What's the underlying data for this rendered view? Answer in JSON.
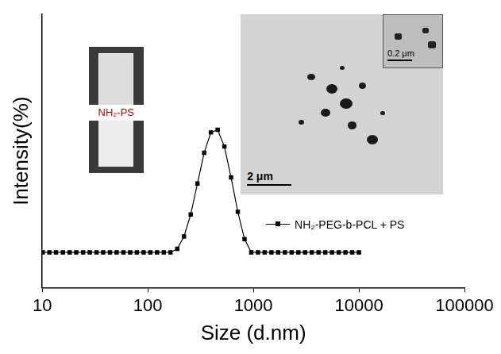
{
  "chart_data": {
    "type": "line",
    "x_label": "Size (d.nm)",
    "y_label": "Intensity(%)",
    "log": "x",
    "grid": false,
    "legend": "right",
    "tick_labels": "x",
    "xlim": [
      10,
      100000
    ],
    "xticks": [
      10,
      100,
      1000,
      10000,
      100000
    ],
    "ylim": [
      -4,
      27
    ],
    "yticks": [],
    "x": [
      10.1,
      11.7,
      13.5,
      15.7,
      18.2,
      21.0,
      24.4,
      28.2,
      32.7,
      37.8,
      43.8,
      50.7,
      58.8,
      68.1,
      78.8,
      91.3,
      105.7,
      122.4,
      141.8,
      164.2,
      190.1,
      220.2,
      255.0,
      295.3,
      342.0,
      396.1,
      458.7,
      531.2,
      615.1,
      712.4,
      825.0,
      955.4,
      1106,
      1281,
      1484,
      1718,
      1990,
      2305,
      2669,
      3091,
      3580,
      4145,
      4801,
      5560,
      6439,
      7456,
      8635,
      10000
    ],
    "series": [
      {
        "name": "NH₂-PEG-b-PCL + PS",
        "color": "#000000",
        "marker": "square",
        "line_style": "solid",
        "values": [
          0,
          0,
          0,
          0,
          0,
          0,
          0,
          0,
          0,
          0,
          0,
          0,
          0,
          0,
          0,
          0,
          0,
          0,
          0,
          0,
          0.4,
          1.8,
          4.3,
          7.8,
          11.3,
          13.6,
          13.9,
          12.0,
          8.5,
          4.6,
          1.5,
          0,
          0,
          0,
          0,
          0,
          0,
          0,
          0,
          0,
          0,
          0,
          0,
          0,
          0,
          0,
          0,
          0
        ]
      }
    ],
    "annotations": {
      "photo_label": "NH₂-PS",
      "tem_scale_bar": "2 μm",
      "tem_inset_scale_bar": "0.2 μm"
    }
  }
}
